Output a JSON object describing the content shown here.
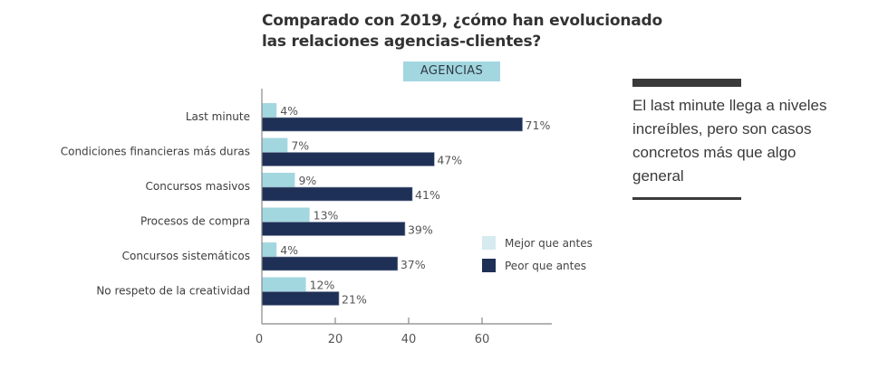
{
  "header": {
    "title_line1": "Comparado con 2019, ¿cómo han evolucionado",
    "title_line2": "las relaciones agencias-clientes?",
    "badge": "AGENCIAS"
  },
  "quote": {
    "text": "El last minute llega a niveles increíbles, pero son casos concretos más que algo general"
  },
  "chart_data": {
    "type": "bar",
    "orientation": "horizontal",
    "title": "Comparado con 2019, ¿cómo han evolucionado las relaciones agencias-clientes?",
    "subtitle": "AGENCIAS",
    "categories": [
      "Last minute",
      "Condiciones financieras más duras",
      "Concursos masivos",
      "Procesos de compra",
      "Concursos sistemáticos",
      "No respeto de la creatividad"
    ],
    "series": [
      {
        "name": "Mejor que antes",
        "color": "#a3d7e0",
        "values": [
          4,
          7,
          9,
          13,
          4,
          12
        ]
      },
      {
        "name": "Peor que antes",
        "color": "#1e3056",
        "values": [
          71,
          47,
          41,
          39,
          37,
          21
        ]
      }
    ],
    "value_suffix": "%",
    "xlabel": "",
    "ylabel": "",
    "xlim": [
      0,
      80
    ],
    "xticks": [
      0,
      20,
      40,
      60
    ],
    "grid": false,
    "legend": {
      "position": "right",
      "entries": [
        "Mejor que antes",
        "Peor que antes"
      ],
      "swatch_colors": [
        "#d6ebef",
        "#1e3056"
      ]
    }
  }
}
